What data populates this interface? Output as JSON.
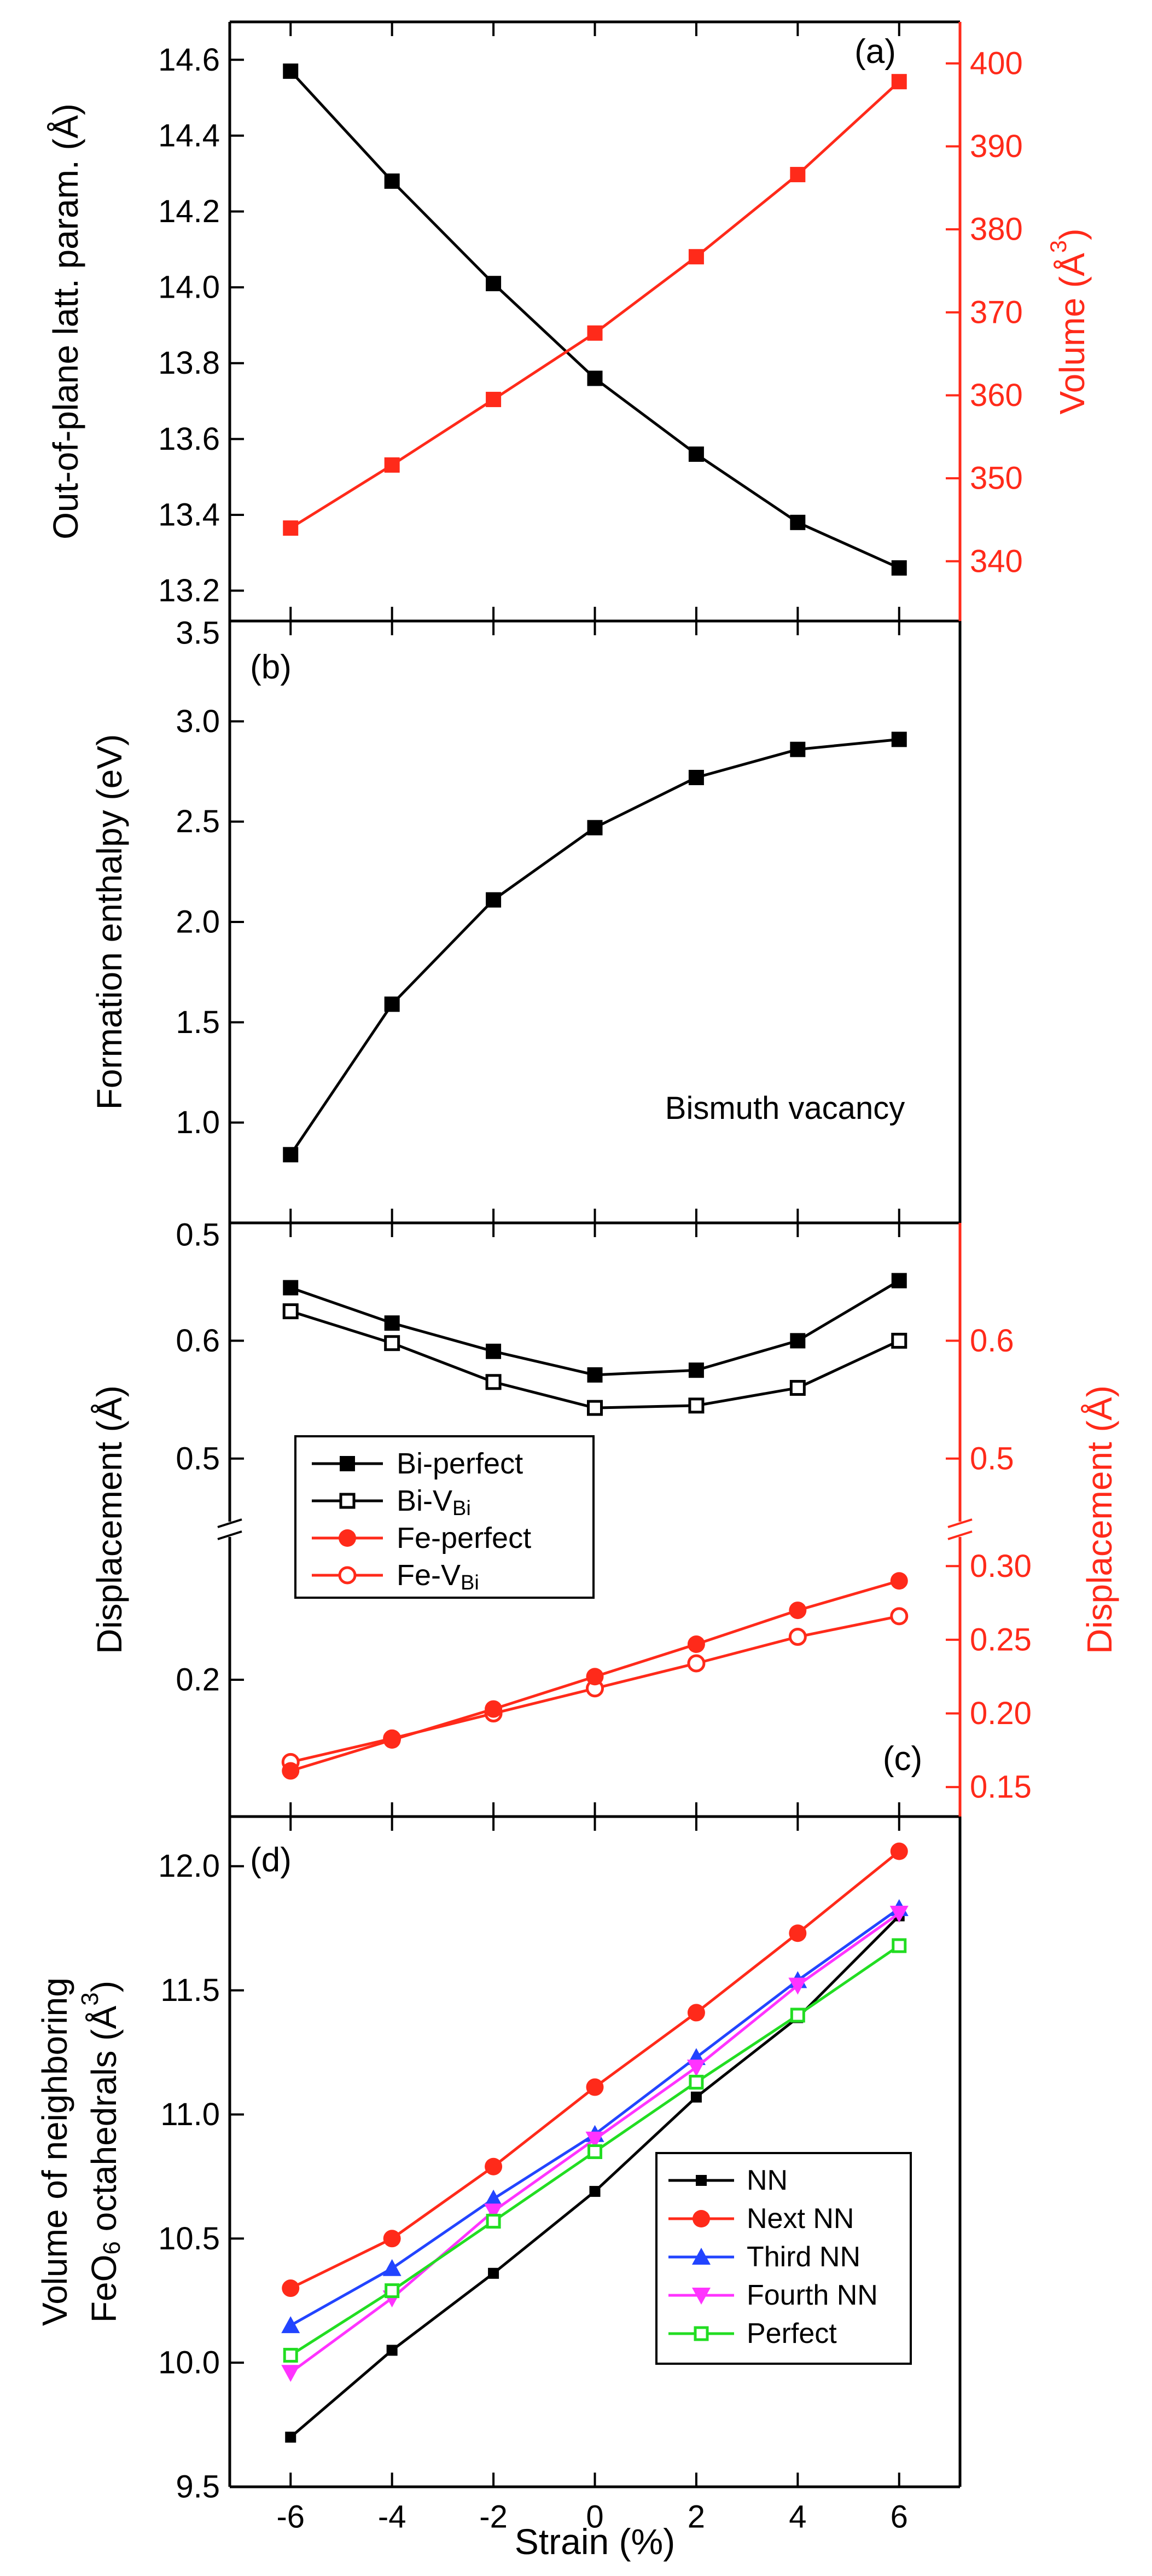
{
  "colors": {
    "black": "#000000",
    "red": "#ff2a1a",
    "blue": "#2244ff",
    "magenta": "#ff33ff",
    "green": "#22dd22"
  },
  "chart_data": [
    {
      "panel": "a",
      "type": "line",
      "panel_label": "(a)",
      "x": [
        -6,
        -4,
        -2,
        0,
        2,
        4,
        6
      ],
      "xlim": [
        -7.2,
        7.2
      ],
      "ylabel_left": "Out-of-plane latt. param. (Å)",
      "ylabel_right_main": "Volume (Å",
      "ylabel_right_sup": "3",
      "ylabel_right_close": ")",
      "ylim_left": [
        13.12,
        14.7
      ],
      "ylim_right": [
        332.8,
        405.0
      ],
      "yticks_left": [
        13.2,
        13.4,
        13.6,
        13.8,
        14.0,
        14.2,
        14.4,
        14.6
      ],
      "yticks_left_labels": [
        "13.2",
        "13.4",
        "13.6",
        "13.8",
        "14.0",
        "14.2",
        "14.4",
        "14.6"
      ],
      "yticks_right": [
        340,
        350,
        360,
        370,
        380,
        390,
        400
      ],
      "yticks_right_labels": [
        "340",
        "350",
        "360",
        "370",
        "380",
        "390",
        "400"
      ],
      "series": [
        {
          "name": "Out-of-plane lattice parameter",
          "axis": "left",
          "color": "#000000",
          "values": [
            14.57,
            14.28,
            14.01,
            13.76,
            13.56,
            13.38,
            13.26
          ]
        },
        {
          "name": "Volume",
          "axis": "right",
          "color": "#ff2a1a",
          "values": [
            344.0,
            351.6,
            359.5,
            367.5,
            376.7,
            386.6,
            397.8
          ]
        }
      ]
    },
    {
      "panel": "b",
      "type": "line",
      "panel_label": "(b)",
      "annotation": "Bismuth vacancy",
      "x": [
        -6,
        -4,
        -2,
        0,
        2,
        4,
        6
      ],
      "xlim": [
        -7.2,
        7.2
      ],
      "ylabel": "Formation enthalpy (eV)",
      "ylim": [
        0.5,
        3.5
      ],
      "yticks": [
        0.5,
        1.0,
        1.5,
        2.0,
        2.5,
        3.0,
        3.5
      ],
      "yticks_labels": [
        "0.5",
        "1.0",
        "1.5",
        "2.0",
        "2.5",
        "3.0",
        "3.5"
      ],
      "series": [
        {
          "name": "Bismuth vacancy",
          "color": "#000000",
          "values": [
            0.84,
            1.59,
            2.11,
            2.47,
            2.72,
            2.86,
            2.91
          ]
        }
      ]
    },
    {
      "panel": "c",
      "type": "line",
      "panel_label": "(c)",
      "x": [
        -6,
        -4,
        -2,
        0,
        2,
        4,
        6
      ],
      "xlim": [
        -7.2,
        7.2
      ],
      "ylabel_left": "Displacement (Å)",
      "ylabel_right": "Displacement (Å)",
      "ylim_left_upper": [
        0.44,
        0.7
      ],
      "ylim_left_lower": [
        0.1,
        0.31
      ],
      "ylim_right_upper": [
        0.44,
        0.7
      ],
      "ylim_right_lower": [
        0.13,
        0.325
      ],
      "yticks_left_upper": [
        0.5,
        0.6
      ],
      "yticks_left_upper_labels": [
        "0.5",
        "0.6"
      ],
      "yticks_left_top_label": "0.5",
      "yticks_left_lower": [
        0.2
      ],
      "yticks_left_lower_labels": [
        "0.2"
      ],
      "yticks_right_upper": [
        0.5,
        0.6
      ],
      "yticks_right_upper_labels": [
        "0.5",
        "0.6"
      ],
      "yticks_right_lower": [
        0.15,
        0.2,
        0.25,
        0.3
      ],
      "yticks_right_lower_labels": [
        "0.15",
        "0.20",
        "0.25",
        "0.30"
      ],
      "series": [
        {
          "name": "Bi-perfect",
          "label_main": "Bi-perfect",
          "label_sub": "",
          "axis": "left-upper",
          "color": "#000000",
          "marker": "square-filled",
          "values": [
            0.645,
            0.615,
            0.591,
            0.571,
            0.575,
            0.6,
            0.651
          ]
        },
        {
          "name": "Bi-VBi",
          "label_main": "Bi-V",
          "label_sub": "Bi",
          "axis": "left-upper",
          "color": "#000000",
          "marker": "square-open",
          "values": [
            0.625,
            0.598,
            0.565,
            0.543,
            0.545,
            0.56,
            0.6
          ]
        },
        {
          "name": "Fe-perfect",
          "label_main": "Fe-perfect",
          "label_sub": "",
          "axis": "right-lower",
          "color": "#ff2a1a",
          "marker": "circle-filled",
          "values": [
            0.161,
            0.182,
            0.203,
            0.225,
            0.247,
            0.27,
            0.29
          ]
        },
        {
          "name": "Fe-VBi",
          "label_main": "Fe-V",
          "label_sub": "Bi",
          "axis": "right-lower",
          "color": "#ff2a1a",
          "marker": "circle-open",
          "values": [
            0.167,
            0.183,
            0.2,
            0.217,
            0.234,
            0.252,
            0.266
          ]
        }
      ]
    },
    {
      "panel": "d",
      "type": "line",
      "panel_label": "(d)",
      "x": [
        -6,
        -4,
        -2,
        0,
        2,
        4,
        6
      ],
      "xlim": [
        -7.2,
        7.2
      ],
      "xlabel": "Strain (%)",
      "xticks": [
        -6,
        -4,
        -2,
        0,
        2,
        4,
        6
      ],
      "xticks_labels": [
        "-6",
        "-4",
        "-2",
        "0",
        "2",
        "4",
        "6"
      ],
      "ylabel_line1": "Volume of neighboring",
      "ylabel_line2_a": "FeO",
      "ylabel_line2_sub": "6",
      "ylabel_line2_b": " octahedrals (Å",
      "ylabel_line2_sup": "3",
      "ylabel_line2_c": ")",
      "ylim": [
        9.5,
        12.2
      ],
      "yticks": [
        9.5,
        10.0,
        10.5,
        11.0,
        11.5,
        12.0
      ],
      "yticks_labels": [
        "9.5",
        "10.0",
        "10.5",
        "11.0",
        "11.5",
        "12.0"
      ],
      "series": [
        {
          "name": "NN",
          "color": "#000000",
          "marker": "square-filled",
          "values": [
            9.7,
            10.05,
            10.36,
            10.69,
            11.07,
            11.39,
            11.8
          ]
        },
        {
          "name": "Next NN",
          "color": "#ff2a1a",
          "marker": "circle-filled",
          "values": [
            10.3,
            10.5,
            10.79,
            11.11,
            11.41,
            11.73,
            12.06
          ]
        },
        {
          "name": "Third NN",
          "color": "#2244ff",
          "marker": "triangle-up",
          "values": [
            10.15,
            10.38,
            10.66,
            10.92,
            11.23,
            11.54,
            11.83
          ]
        },
        {
          "name": "Fourth NN",
          "color": "#ff33ff",
          "marker": "triangle-down",
          "values": [
            9.96,
            10.26,
            10.61,
            10.9,
            11.19,
            11.52,
            11.81
          ]
        },
        {
          "name": "Perfect",
          "color": "#22dd22",
          "marker": "square-open",
          "values": [
            10.03,
            10.29,
            10.57,
            10.85,
            11.13,
            11.4,
            11.68
          ]
        }
      ]
    }
  ]
}
